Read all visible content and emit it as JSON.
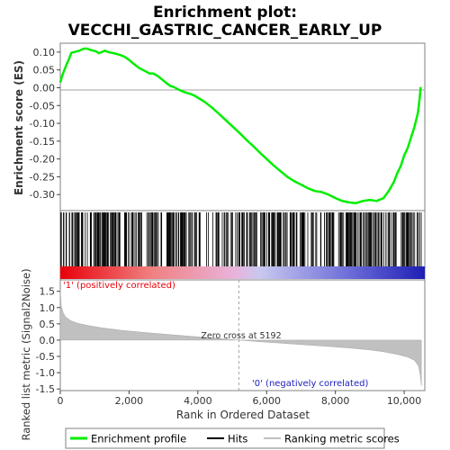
{
  "chart_data": [
    {
      "panel": "enrichment",
      "type": "line",
      "title_line1": "Enrichment plot:",
      "title_line2": "VECCHI_GASTRIC_CANCER_EARLY_UP",
      "ylabel": "Enrichment score (ES)",
      "ylim": [
        -0.345,
        0.125
      ],
      "yticks": [
        0.1,
        0.05,
        0.0,
        -0.05,
        -0.1,
        -0.15,
        -0.2,
        -0.25,
        -0.3
      ],
      "ytick_labels": [
        "0.10",
        "0.05",
        "0.00",
        "-0.05",
        "-0.10",
        "-0.15",
        "-0.20",
        "-0.25",
        "-0.30"
      ],
      "xlim": [
        0,
        10600
      ],
      "color": "#00ee00",
      "series": [
        {
          "name": "Enrichment profile",
          "x": [
            0,
            60,
            120,
            180,
            250,
            320,
            400,
            480,
            560,
            640,
            720,
            800,
            880,
            960,
            1040,
            1120,
            1200,
            1300,
            1400,
            1500,
            1600,
            1700,
            1800,
            1900,
            2000,
            2100,
            2200,
            2300,
            2400,
            2500,
            2600,
            2700,
            2800,
            2900,
            3000,
            3100,
            3200,
            3300,
            3400,
            3500,
            3600,
            3700,
            3800,
            3900,
            4000,
            4200,
            4400,
            4600,
            4800,
            5000,
            5200,
            5400,
            5600,
            5800,
            6000,
            6200,
            6400,
            6600,
            6800,
            7000,
            7200,
            7400,
            7600,
            7800,
            8000,
            8200,
            8400,
            8600,
            8800,
            9000,
            9200,
            9400,
            9550,
            9700,
            9800,
            9900,
            10000,
            10100,
            10200,
            10300,
            10400,
            10450,
            10480
          ],
          "y": [
            0.015,
            0.035,
            0.05,
            0.065,
            0.08,
            0.098,
            0.1,
            0.102,
            0.104,
            0.108,
            0.11,
            0.109,
            0.106,
            0.104,
            0.102,
            0.097,
            0.1,
            0.104,
            0.1,
            0.098,
            0.096,
            0.093,
            0.09,
            0.085,
            0.078,
            0.07,
            0.062,
            0.055,
            0.05,
            0.045,
            0.04,
            0.04,
            0.035,
            0.028,
            0.02,
            0.012,
            0.005,
            0.002,
            -0.003,
            -0.008,
            -0.012,
            -0.015,
            -0.018,
            -0.022,
            -0.028,
            -0.04,
            -0.055,
            -0.072,
            -0.09,
            -0.108,
            -0.126,
            -0.145,
            -0.163,
            -0.182,
            -0.2,
            -0.218,
            -0.234,
            -0.25,
            -0.262,
            -0.272,
            -0.282,
            -0.29,
            -0.293,
            -0.3,
            -0.31,
            -0.318,
            -0.322,
            -0.324,
            -0.318,
            -0.315,
            -0.318,
            -0.31,
            -0.29,
            -0.265,
            -0.24,
            -0.22,
            -0.19,
            -0.17,
            -0.14,
            -0.11,
            -0.07,
            -0.03,
            0.002
          ]
        }
      ]
    },
    {
      "panel": "hits",
      "type": "table",
      "legend_name": "Hits",
      "n_hits": 400,
      "xlim": [
        0,
        10600
      ],
      "gradient": [
        "#e8000a",
        "#f08080",
        "#e8b4dc",
        "#c8c8f0",
        "#6a6ad8",
        "#1e1eb4"
      ]
    },
    {
      "panel": "ranking",
      "type": "area",
      "legend_name": "Ranking metric scores",
      "ylabel": "Ranked list metric (Signal2Noise)",
      "xlabel": "Rank in Ordered Dataset",
      "ylim": [
        -1.55,
        1.85
      ],
      "xlim": [
        0,
        10600
      ],
      "yticks": [
        1.5,
        1.0,
        0.5,
        0.0,
        -0.5,
        -1.0,
        -1.5
      ],
      "ytick_labels": [
        "1.5",
        "1.0",
        "0.5",
        "0.0",
        "-0.5",
        "-1.0",
        "-1.5"
      ],
      "xticks": [
        0,
        2000,
        4000,
        6000,
        8000,
        10000
      ],
      "xtick_labels": [
        "0",
        "2,000",
        "4,000",
        "6,000",
        "8,000",
        "10,000"
      ],
      "zero_cross": 5192,
      "zero_cross_label": "Zero cross at 5192",
      "pos_label": "'1' (positively correlated)",
      "neg_label": "'0' (negatively correlated)",
      "fill_color": "#c0c0c0",
      "x": [
        0,
        30,
        80,
        150,
        300,
        500,
        800,
        1200,
        1800,
        2500,
        3200,
        4000,
        4600,
        5192,
        5800,
        6500,
        7200,
        7900,
        8500,
        9000,
        9400,
        9800,
        10100,
        10300,
        10420,
        10470,
        10500
      ],
      "y": [
        1.55,
        1.05,
        0.85,
        0.72,
        0.6,
        0.52,
        0.45,
        0.38,
        0.3,
        0.23,
        0.17,
        0.1,
        0.05,
        0.0,
        -0.05,
        -0.1,
        -0.15,
        -0.2,
        -0.25,
        -0.3,
        -0.36,
        -0.44,
        -0.52,
        -0.62,
        -0.8,
        -1.1,
        -1.4
      ]
    }
  ],
  "legend": [
    {
      "label": "Enrichment profile",
      "color": "#00ee00"
    },
    {
      "label": "Hits",
      "color": "#000000"
    },
    {
      "label": "Ranking metric scores",
      "color": "#c0c0c0"
    }
  ]
}
